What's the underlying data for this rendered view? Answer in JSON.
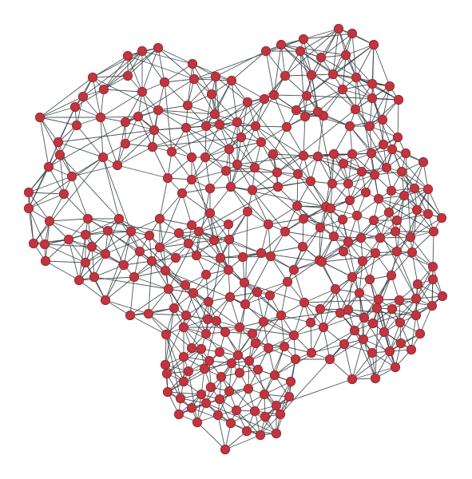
{
  "figure": {
    "kind": "network-graph",
    "edge_color": "#2f3b40",
    "node_fill": "#c1353f",
    "node_stroke": "#9a2a34",
    "background": "#ffffff"
  }
}
